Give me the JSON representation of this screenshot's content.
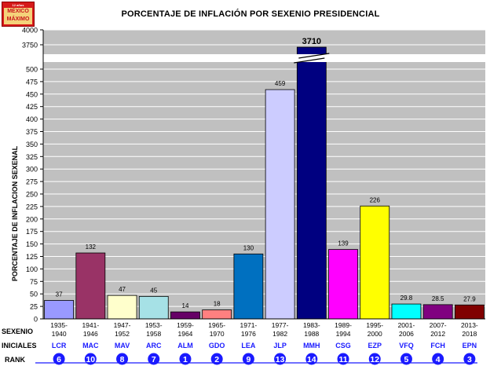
{
  "logo": {
    "small": "12 años",
    "main": "MÉXICO MÁXIMO"
  },
  "chart_data": {
    "type": "bar",
    "title": "PORCENTAJE DE INFLACIÓN POR SEXENIO PRESIDENCIAL",
    "ylabel": "PORCENTAJE DE INFLACION SEXENAL",
    "ylim_lower": [
      0,
      500
    ],
    "ylim_upper": [
      3750,
      4000
    ],
    "y_ticks": [
      "0",
      "25",
      "50",
      "75",
      "100",
      "125",
      "150",
      "175",
      "200",
      "225",
      "250",
      "275",
      "300",
      "325",
      "350",
      "375",
      "400",
      "425",
      "450",
      "475",
      "500",
      "3750",
      "4000"
    ],
    "row_labels": {
      "sexenio": "SEXENIO",
      "iniciales": "INICIALES",
      "rank": "RANK"
    },
    "categories": [
      "1935-1940",
      "1941-1946",
      "1947-1952",
      "1953-1958",
      "1959-1964",
      "1965-1970",
      "1971-1976",
      "1977-1982",
      "1983-1988",
      "1989-1994",
      "1995-2000",
      "2001-2006",
      "2007-2012",
      "2013-2018"
    ],
    "values": [
      37,
      132,
      47,
      45,
      14,
      18,
      130,
      459,
      3710,
      139,
      226,
      29.8,
      28.5,
      27.9
    ],
    "value_labels": [
      "37",
      "132",
      "47",
      "45",
      "14",
      "18",
      "130",
      "459",
      "3710",
      "139",
      "226",
      "29.8",
      "28.5",
      "27.9"
    ],
    "initials": [
      "LCR",
      "MAC",
      "MAV",
      "ARC",
      "ALM",
      "GDO",
      "LEA",
      "JLP",
      "MMH",
      "CSG",
      "EZP",
      "VFQ",
      "FCH",
      "EPN"
    ],
    "ranks": [
      "6",
      "10",
      "8",
      "7",
      "1",
      "2",
      "9",
      "13",
      "14",
      "11",
      "12",
      "5",
      "4",
      "3"
    ],
    "colors": [
      "#9999ff",
      "#993366",
      "#ffffcc",
      "#a6e1e6",
      "#660066",
      "#ff8080",
      "#0070c0",
      "#ccccff",
      "#000080",
      "#ff00ff",
      "#ffff00",
      "#00ffff",
      "#800080",
      "#800000"
    ],
    "grid": true
  }
}
